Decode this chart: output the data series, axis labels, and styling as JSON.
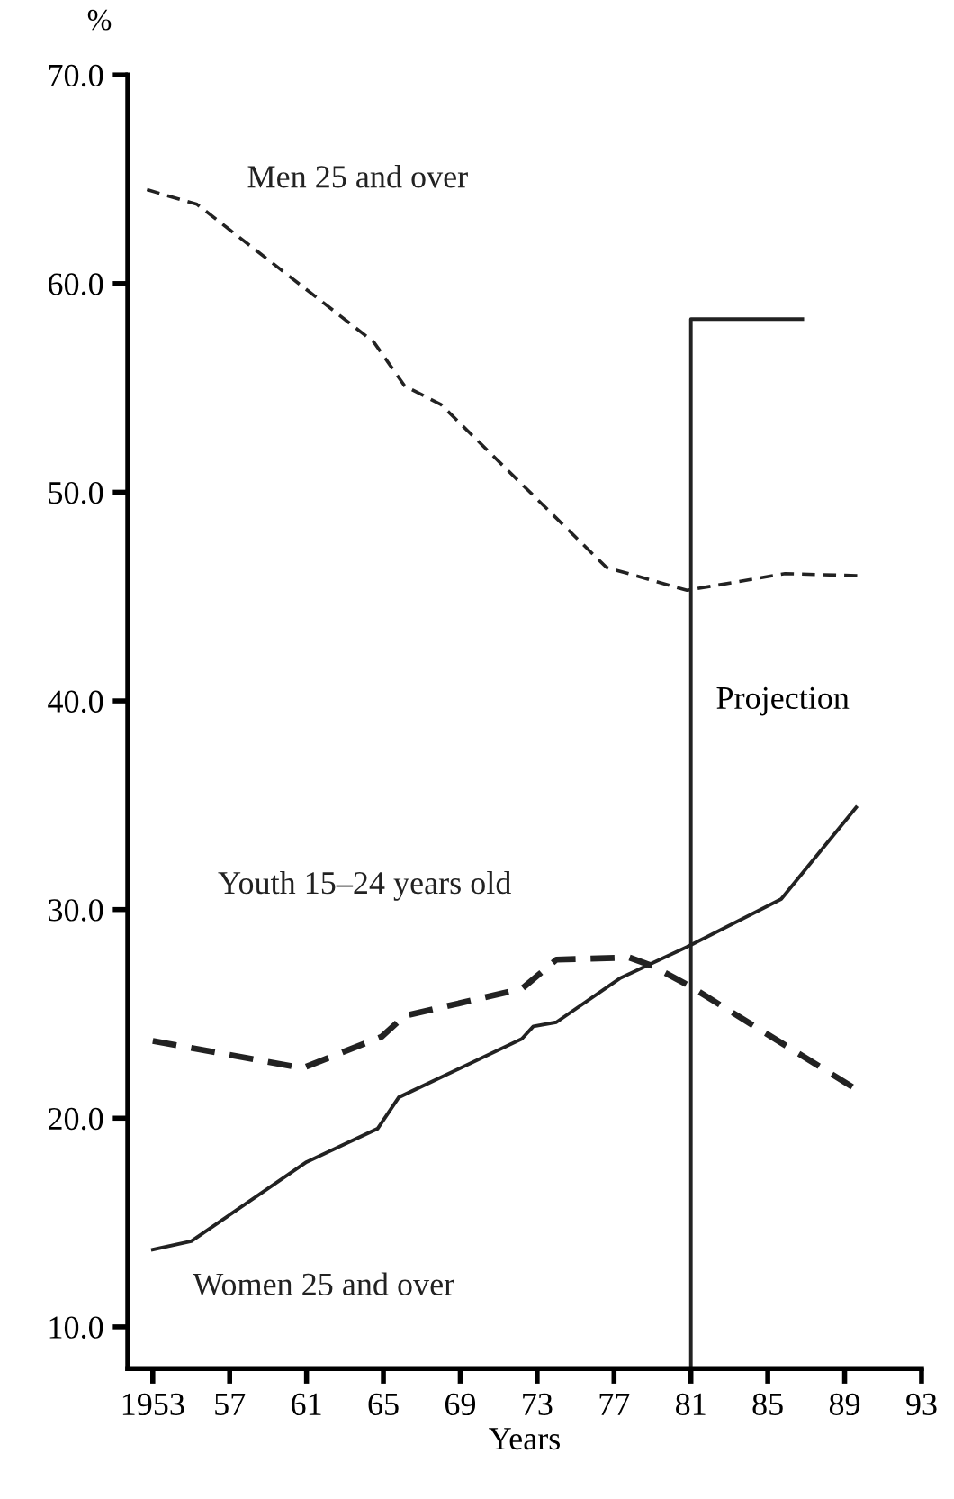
{
  "chart_data": {
    "type": "line",
    "ylabel": "%",
    "xlabel": "Years",
    "xlim": [
      1951.7,
      1993
    ],
    "xticks": [
      {
        "value": 1953,
        "label": "1953"
      },
      {
        "value": 1957,
        "label": "57"
      },
      {
        "value": 1961,
        "label": "61"
      },
      {
        "value": 1965,
        "label": "65"
      },
      {
        "value": 1969,
        "label": "69"
      },
      {
        "value": 1973,
        "label": "73"
      },
      {
        "value": 1977,
        "label": "77"
      },
      {
        "value": 1981,
        "label": "81"
      },
      {
        "value": 1985,
        "label": "85"
      },
      {
        "value": 1989,
        "label": "89"
      },
      {
        "value": 1993,
        "label": "93"
      }
    ],
    "ylim": [
      8,
      70
    ],
    "yticks": [
      {
        "value": 10,
        "label": "10.0"
      },
      {
        "value": 20,
        "label": "20.0"
      },
      {
        "value": 30,
        "label": "30.0"
      },
      {
        "value": 40,
        "label": "40.0"
      },
      {
        "value": 50,
        "label": "50.0"
      },
      {
        "value": 60,
        "label": "60.0"
      },
      {
        "value": 70,
        "label": "70.0"
      }
    ],
    "grid": false,
    "legend": false,
    "marker": "none",
    "series": [
      {
        "name": "Men 25 and over",
        "color": "#222222",
        "line_style": "dashed",
        "x": [
          1952.7,
          1955.3,
          1964.5,
          1966.1,
          1968,
          1976.6,
          1980.8,
          1985.9,
          1989.7
        ],
        "values": [
          64.5,
          63.8,
          57.2,
          55.1,
          54.2,
          46.4,
          45.3,
          46.1,
          46.0
        ]
      },
      {
        "name": "Youth 15–24 years old",
        "color": "#222222",
        "line_style": "dashed",
        "x": [
          1953,
          1960.8,
          1964.9,
          1966.1,
          1972.2,
          1974,
          1977.8,
          1979,
          1981,
          1989.4
        ],
        "values": [
          23.7,
          22.4,
          23.9,
          24.9,
          26.2,
          27.6,
          27.7,
          27.3,
          26.3,
          21.5
        ]
      },
      {
        "name": "Women 25 and over",
        "color": "#222222",
        "line_style": "solid",
        "x": [
          1953,
          1955,
          1961,
          1964.7,
          1965.8,
          1972.2,
          1972.8,
          1974,
          1977.3,
          1981,
          1985.7,
          1989.6
        ],
        "values": [
          13.7,
          14.1,
          17.9,
          19.5,
          21.0,
          23.8,
          24.4,
          24.6,
          26.7,
          28.3,
          30.5,
          34.9
        ]
      },
      {
        "color": "#222222",
        "line_style": "solid",
        "x": [
          1981,
          1981,
          1986.8
        ],
        "values": [
          8,
          58.3,
          58.3
        ]
      }
    ],
    "annotations": [
      {
        "text": "Projection",
        "x": 1981,
        "y": 40
      }
    ]
  }
}
